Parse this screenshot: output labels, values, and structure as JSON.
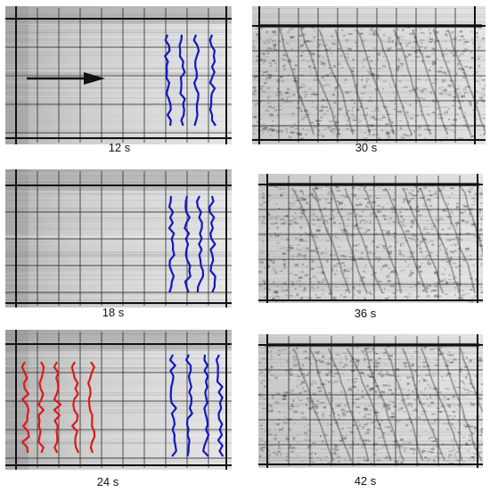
{
  "figure": {
    "panels": [
      {
        "id": "p12",
        "caption": "12 s",
        "tone": "smooth",
        "arrow": true,
        "blue_lines": 4,
        "red_lines": 0
      },
      {
        "id": "p30",
        "caption": "30 s",
        "tone": "textured",
        "arrow": false,
        "blue_lines": 0,
        "red_lines": 0
      },
      {
        "id": "p18",
        "caption": "18 s",
        "tone": "smooth",
        "arrow": false,
        "blue_lines": 4,
        "red_lines": 0
      },
      {
        "id": "p36",
        "caption": "36 s",
        "tone": "textured",
        "arrow": false,
        "blue_lines": 0,
        "red_lines": 0
      },
      {
        "id": "p24",
        "caption": "24 s",
        "tone": "smooth",
        "arrow": false,
        "blue_lines": 4,
        "red_lines": 5
      },
      {
        "id": "p42",
        "caption": "42 s",
        "tone": "textured",
        "arrow": false,
        "blue_lines": 0,
        "red_lines": 0
      }
    ],
    "colors": {
      "blue_trace": "#1515c8",
      "red_trace": "#e01818",
      "arrow": "#111111",
      "grid": "#222222"
    }
  }
}
